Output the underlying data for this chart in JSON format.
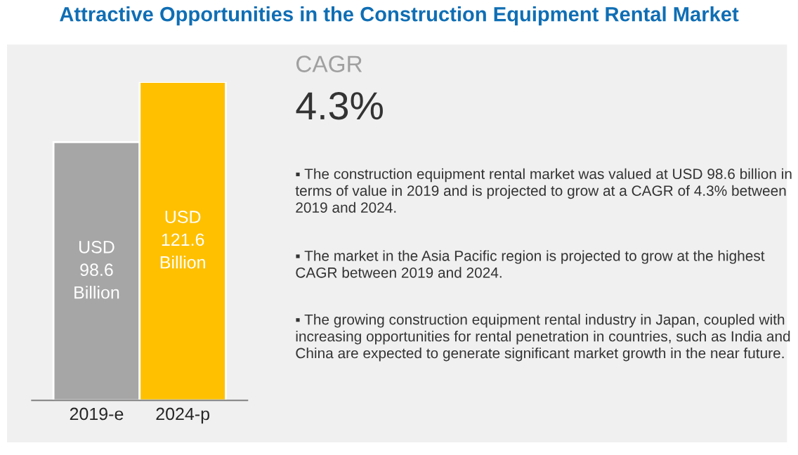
{
  "chart_data": {
    "type": "bar",
    "title": "Attractive Opportunities in the Construction Equipment Rental Market",
    "categories": [
      "2019-e",
      "2024-p"
    ],
    "values": [
      98.6,
      121.6
    ],
    "colors": [
      "#a6a6a6",
      "#ffc000"
    ],
    "value_labels": [
      "USD\n98.6\nBillion",
      "USD\n121.6\nBillion"
    ],
    "annotations": [
      "CAGR",
      "4.3%",
      "▪ The construction equipment rental market was valued at USD 98.6 billion in terms of value in 2019 and is projected to grow at a CAGR of 4.3% between 2019 and 2024.",
      "▪ The market in the Asia Pacific region is projected to grow at the highest CAGR between 2019 and 2024.",
      "▪ The growing construction equipment rental industry in Japan, coupled with increasing opportunities for rental penetration in countries, such as India and China are expected to generate significant market growth in the near future."
    ],
    "grid": false,
    "legend": false
  }
}
